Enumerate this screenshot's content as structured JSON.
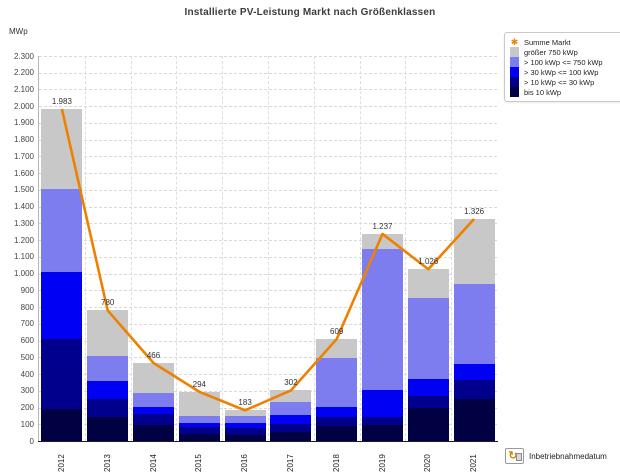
{
  "title": "Installierte PV-Leistung Markt nach Größenklassen",
  "y_axis": {
    "unit_label": "MWp"
  },
  "x_axis": {
    "label": "Inbetriebnahmedatum",
    "icon": "field-select-icon"
  },
  "colors": {
    "line": "#ee8100",
    "groesser_750": "#c8c8c8",
    "s100_750": "#7d7df0",
    "s30_100": "#0000f2",
    "s10_30": "#00008c",
    "bis_10": "#000042",
    "grid": "#d9d9d9",
    "title": "#3c3c3c"
  },
  "legend": {
    "items": [
      {
        "label": "Summe Markt",
        "marker": "orange-star",
        "color": "#ee8100"
      },
      {
        "label": "größer 750 kWp",
        "color": "#c8c8c8"
      },
      {
        "label": "> 100 kWp <= 750 kWp",
        "color": "#7d7df0"
      },
      {
        "label": "> 30 kWp <= 100 kWp",
        "color": "#0000f2"
      },
      {
        "label": "> 10 kWp <= 30 kWp",
        "color": "#00008c"
      },
      {
        "label": "bis 10 kWp",
        "color": "#000042"
      }
    ]
  },
  "chart_data": {
    "type": "bar",
    "subtype": "stacked-bars-with-line",
    "title": "Installierte PV-Leistung Markt nach Größenklassen",
    "xlabel": "Inbetriebnahmedatum",
    "ylabel": "MWp",
    "ylim": [
      0,
      2300
    ],
    "y_tick_step": 100,
    "grid": true,
    "legend_position": "top-right",
    "categories": [
      "2012",
      "2013",
      "2014",
      "2015",
      "2016",
      "2017",
      "2018",
      "2019",
      "2020",
      "2021"
    ],
    "series": [
      {
        "name": "bis 10 kWp",
        "color": "#000042",
        "values": [
          190,
          142,
          96,
          42,
          35,
          52,
          91,
          96,
          196,
          250
        ]
      },
      {
        "name": "> 10 kWp <= 30 kWp",
        "color": "#00008c",
        "values": [
          420,
          111,
          68,
          42,
          40,
          48,
          52,
          50,
          74,
          116
        ]
      },
      {
        "name": "> 30 kWp <= 100 kWp",
        "color": "#0000f2",
        "values": [
          399,
          105,
          42,
          24,
          33,
          55,
          58,
          156,
          100,
          95
        ]
      },
      {
        "name": "> 100 kWp <= 750 kWp",
        "color": "#7d7df0",
        "values": [
          496,
          150,
          82,
          42,
          40,
          77,
          296,
          845,
          487,
          476
        ]
      },
      {
        "name": "größer 750 kWp",
        "color": "#c8c8c8",
        "values": [
          478,
          272,
          178,
          144,
          35,
          70,
          112,
          90,
          169,
          389
        ]
      }
    ],
    "line_series": {
      "name": "Summe Markt",
      "color": "#ee8100",
      "values": [
        1983,
        780,
        466,
        294,
        183,
        302,
        609,
        1237,
        1026,
        1326
      ],
      "labels": [
        "1.983",
        "780",
        "466",
        "294",
        "183",
        "302",
        "609",
        "1.237",
        "1.026",
        "1.326"
      ]
    }
  }
}
